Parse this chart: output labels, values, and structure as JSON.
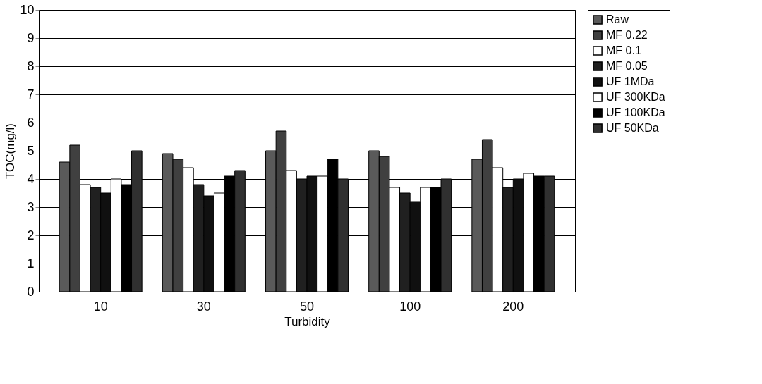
{
  "chart_data": {
    "type": "bar",
    "xlabel": "Turbidity",
    "ylabel": "TOC(mg/l)",
    "categories": [
      "10",
      "30",
      "50",
      "100",
      "200"
    ],
    "series": [
      {
        "name": "Raw",
        "color": "#5a5a5a",
        "values": [
          4.6,
          4.9,
          5.0,
          5.0,
          4.7
        ]
      },
      {
        "name": "MF 0.22",
        "color": "#404040",
        "values": [
          5.2,
          4.7,
          5.7,
          4.8,
          5.4
        ]
      },
      {
        "name": "MF 0.1",
        "color": "#ffffff",
        "values": [
          3.8,
          4.4,
          4.3,
          3.7,
          4.4
        ]
      },
      {
        "name": "MF 0.05",
        "color": "#202020",
        "values": [
          3.7,
          3.8,
          4.0,
          3.5,
          3.7
        ]
      },
      {
        "name": "UF 1MDa",
        "color": "#101010",
        "values": [
          3.5,
          3.4,
          4.1,
          3.2,
          4.0
        ]
      },
      {
        "name": "UF 300KDa",
        "color": "#ffffff",
        "values": [
          4.0,
          3.5,
          4.1,
          3.7,
          4.2
        ]
      },
      {
        "name": "UF 100KDa",
        "color": "#000000",
        "values": [
          3.8,
          4.1,
          4.7,
          3.7,
          4.1
        ]
      },
      {
        "name": "UF 50KDa",
        "color": "#303030",
        "values": [
          5.0,
          4.3,
          4.0,
          4.0,
          4.1
        ]
      }
    ],
    "ylim": [
      0,
      10
    ],
    "yticks": [
      0,
      1,
      2,
      3,
      4,
      5,
      6,
      7,
      8,
      9,
      10
    ],
    "grid": "y",
    "legend": "right"
  }
}
